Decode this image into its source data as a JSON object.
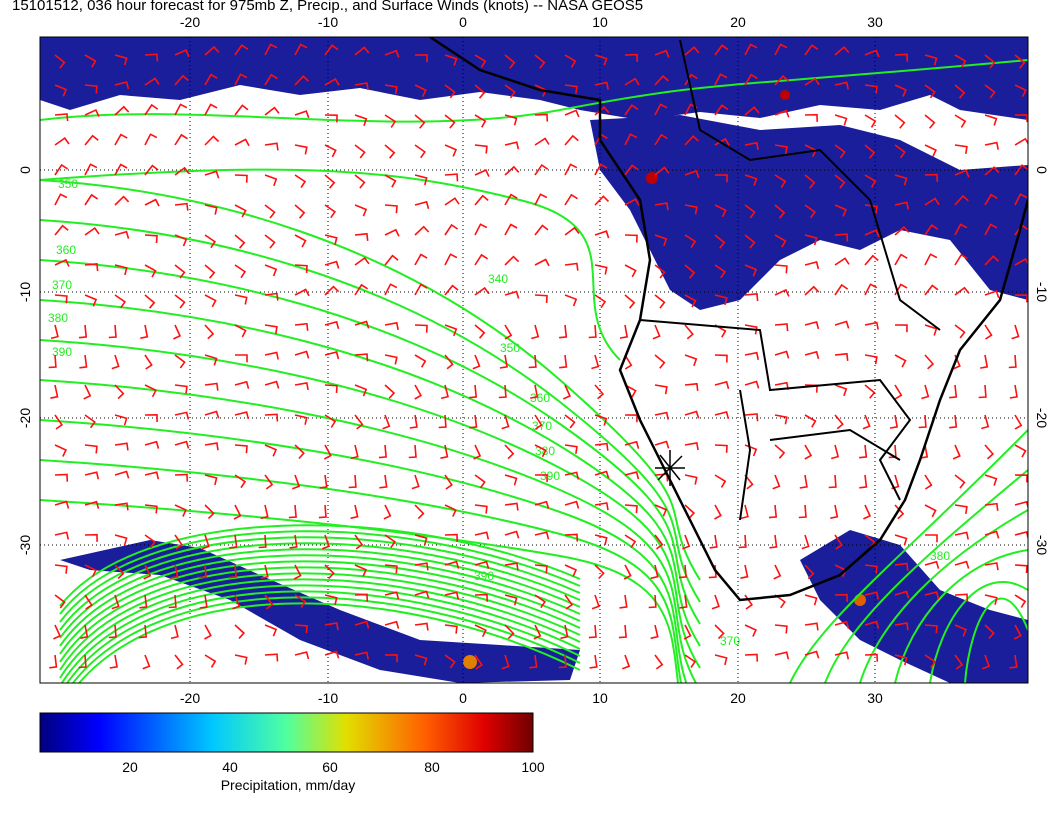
{
  "title": "15101512, 036 hour forecast for 975mb Z, Precip., and Surface Winds (knots) -- NASA GEOS5",
  "map": {
    "lon_ticks": [
      -20,
      -10,
      0,
      10,
      20,
      30
    ],
    "lat_ticks": [
      0,
      -10,
      -20,
      -30
    ],
    "contour_labels": [
      "350",
      "360",
      "370",
      "380",
      "390",
      "340",
      "350",
      "360",
      "370",
      "380",
      "390",
      "390",
      "370",
      "380"
    ]
  },
  "colorbar": {
    "ticks": [
      20,
      40,
      60,
      80,
      100
    ],
    "label": "Precipitation, mm/day"
  }
}
